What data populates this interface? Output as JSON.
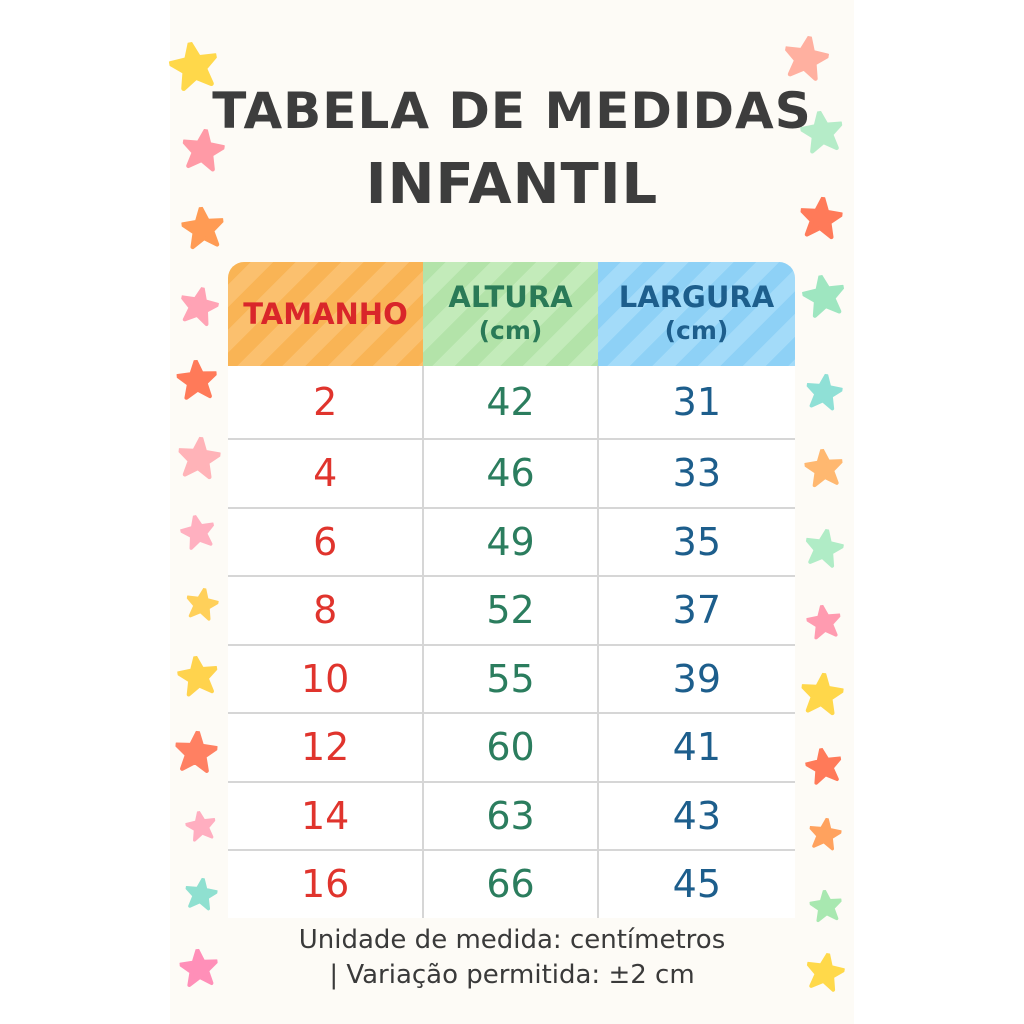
{
  "title": {
    "line1": "TABELA DE MEDIDAS",
    "line2": "INFANTIL"
  },
  "table": {
    "headers": [
      {
        "label": "TAMANHO",
        "unit": ""
      },
      {
        "label": "ALTURA",
        "unit": "(cm)"
      },
      {
        "label": "LARGURA",
        "unit": "(cm)"
      }
    ],
    "rows": [
      {
        "tamanho": "2",
        "altura": "42",
        "largura": "31"
      },
      {
        "tamanho": "4",
        "altura": "46",
        "largura": "33"
      },
      {
        "tamanho": "6",
        "altura": "49",
        "largura": "35"
      },
      {
        "tamanho": "8",
        "altura": "52",
        "largura": "37"
      },
      {
        "tamanho": "10",
        "altura": "55",
        "largura": "39"
      },
      {
        "tamanho": "12",
        "altura": "60",
        "largura": "41"
      },
      {
        "tamanho": "14",
        "altura": "63",
        "largura": "43"
      },
      {
        "tamanho": "16",
        "altura": "66",
        "largura": "45"
      }
    ]
  },
  "footer": {
    "line1": "Unidade de medida: centímetros",
    "line2": "| Variação permitida: ±2 cm"
  },
  "colors": {
    "header_tamanho_bg": "#f9b455",
    "header_altura_bg": "#b3e3a9",
    "header_largura_bg": "#8ed1f6",
    "tamanho_text": "#e0342d",
    "altura_text": "#2b7d5e",
    "largura_text": "#1d5e8c",
    "title_text": "#3d3d3d"
  },
  "decorations": {
    "icon": "star-icon"
  }
}
